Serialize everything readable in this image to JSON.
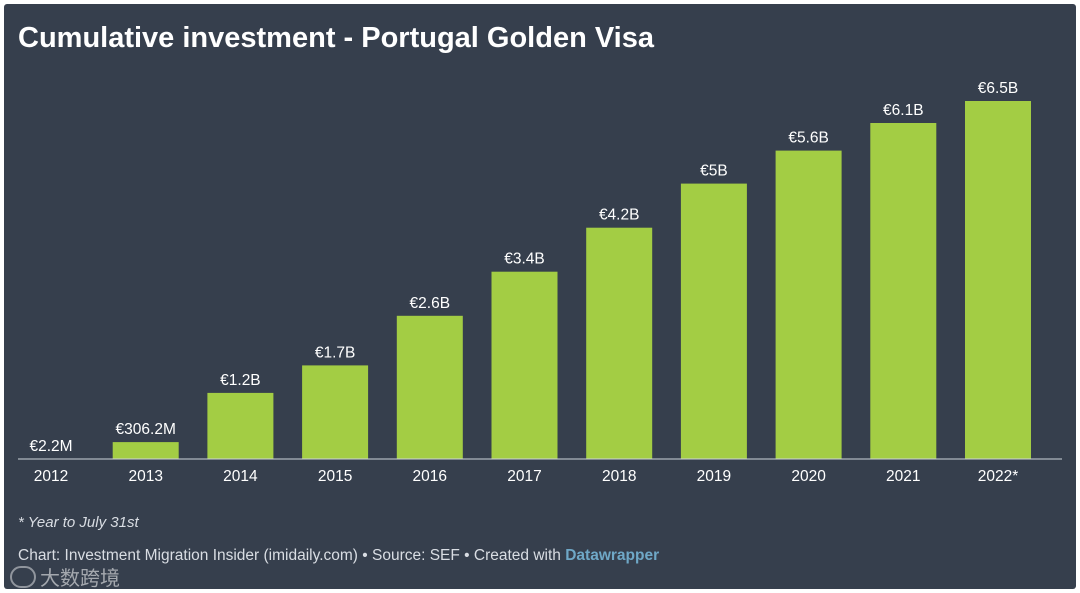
{
  "title": "Cumulative investment - Portugal Golden Visa",
  "footnote": "* Year to July 31st",
  "source": {
    "prefix": "Chart: Investment Migration Insider (imidaily.com) • Source: SEF • Created with ",
    "link": "Datawrapper"
  },
  "watermark": "大数跨境",
  "colors": {
    "background": "#363f4d",
    "bar": "#a3cd44",
    "text": "#ffffff",
    "link": "#6fa8c7"
  },
  "chart_data": {
    "type": "bar",
    "title": "Cumulative investment - Portugal Golden Visa",
    "xlabel": "",
    "ylabel": "",
    "unit": "million EUR",
    "ylim": [
      0,
      6500
    ],
    "categories": [
      "2012",
      "2013",
      "2014",
      "2015",
      "2016",
      "2017",
      "2018",
      "2019",
      "2020",
      "2021",
      "2022*"
    ],
    "values": [
      2.2,
      306.2,
      1200,
      1700,
      2600,
      3400,
      4200,
      5000,
      5600,
      6100,
      6500
    ],
    "labels": [
      "€2.2M",
      "€306.2M",
      "€1.2B",
      "€1.7B",
      "€2.6B",
      "€3.4B",
      "€4.2B",
      "€5B",
      "€5.6B",
      "€6.1B",
      "€6.5B"
    ],
    "grid": false,
    "legend": "none"
  }
}
